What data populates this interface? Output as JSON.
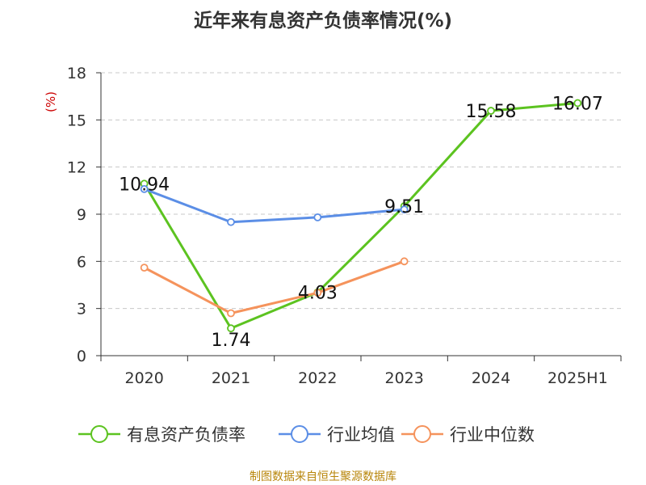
{
  "chart_data": {
    "type": "line",
    "title": "近年来有息资产负债率情况(%)",
    "ylabel": "(%)",
    "categories": [
      "2020",
      "2021",
      "2022",
      "2023",
      "2024",
      "2025H1"
    ],
    "y_ticks": [
      "0",
      "3",
      "6",
      "9",
      "12",
      "15",
      "18"
    ],
    "ylim": [
      0,
      18
    ],
    "grid": true,
    "legend_position": "bottom",
    "series": [
      {
        "name": "有息资产负债率",
        "color": "#5cc320",
        "values": [
          10.94,
          1.74,
          4.03,
          9.51,
          15.58,
          16.07
        ],
        "labels": [
          "10.94",
          "1.74",
          "4.03",
          "9.51",
          "15.58",
          "16.07"
        ]
      },
      {
        "name": "行业均值",
        "color": "#5b8ee6",
        "values": [
          10.6,
          8.5,
          8.8,
          9.3,
          null,
          null
        ]
      },
      {
        "name": "行业中位数",
        "color": "#f5935c",
        "values": [
          5.6,
          2.7,
          4.0,
          6.0,
          null,
          null
        ]
      }
    ]
  },
  "source": "制图数据来自恒生聚源数据库"
}
